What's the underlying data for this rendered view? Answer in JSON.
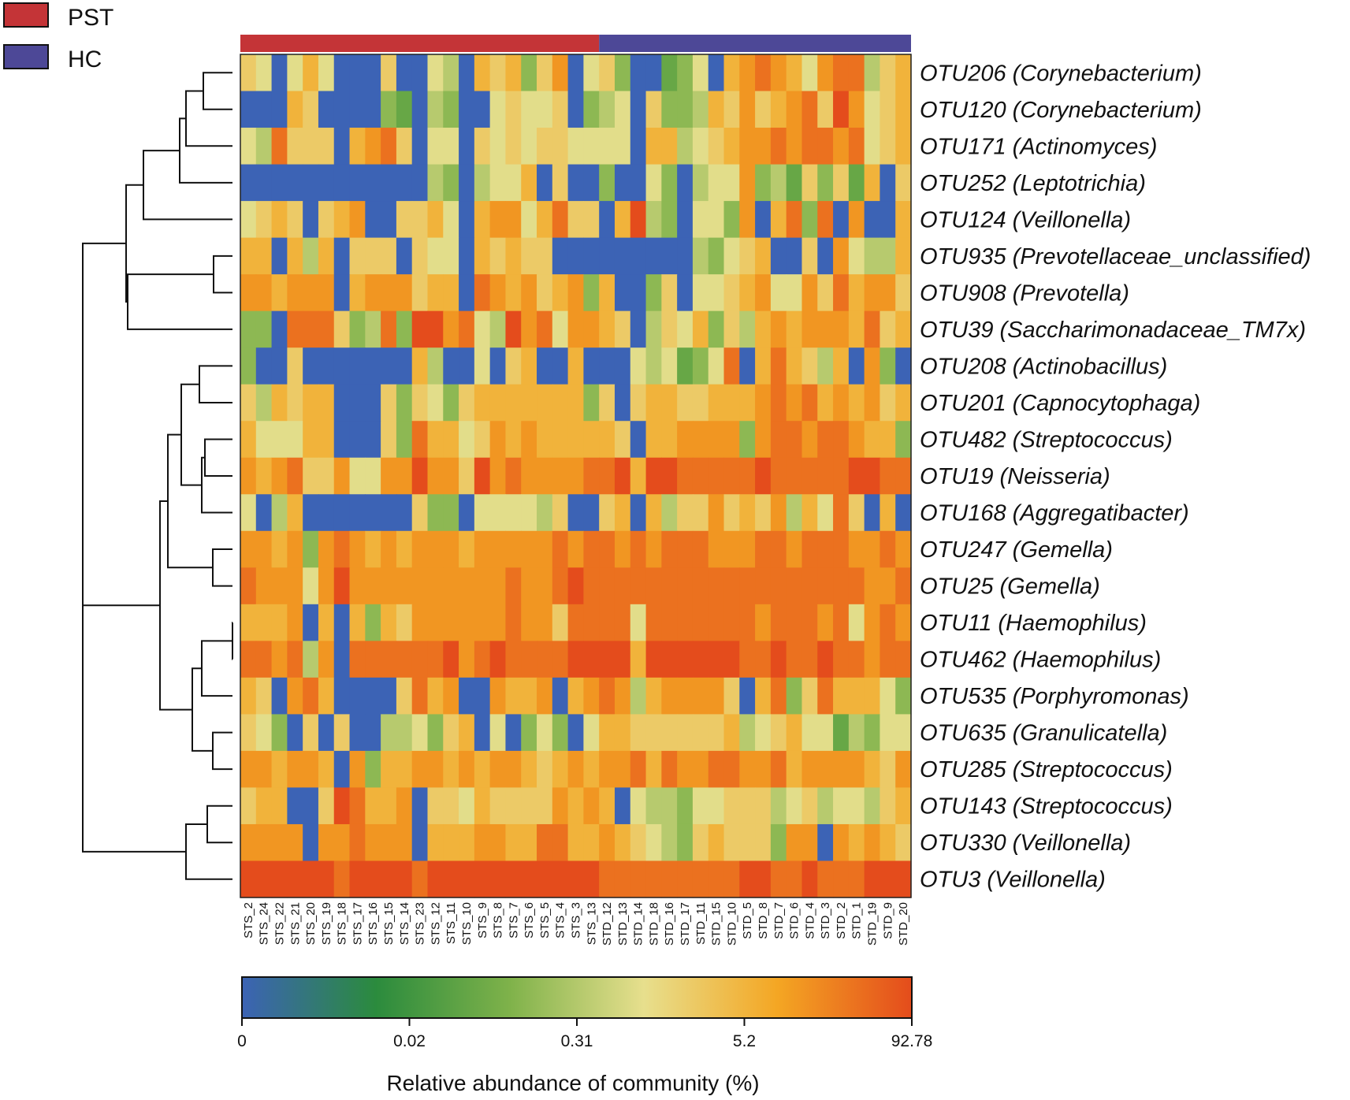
{
  "chart_data": {
    "type": "heatmap",
    "title": "",
    "legend": {
      "position": "top-left",
      "entries": [
        {
          "label": "PST",
          "color": "#c43437"
        },
        {
          "label": "HC",
          "color": "#4d4897"
        }
      ]
    },
    "groups": [
      {
        "label": "PST",
        "color": "#c43437",
        "columns": 23
      },
      {
        "label": "HC",
        "color": "#4d4897",
        "columns": 20
      }
    ],
    "columns": [
      "STS_2",
      "STS_24",
      "STS_22",
      "STS_21",
      "STS_20",
      "STS_19",
      "STS_18",
      "STS_17",
      "STS_16",
      "STS_15",
      "STS_14",
      "STS_23",
      "STS_12",
      "STS_11",
      "STS_10",
      "STS_9",
      "STS_8",
      "STS_7",
      "STS_6",
      "STS_5",
      "STS_4",
      "STS_3",
      "STS_13",
      "STD_12",
      "STD_13",
      "STD_14",
      "STD_18",
      "STD_16",
      "STD_17",
      "STD_11",
      "STD_15",
      "STD_10",
      "STD_5",
      "STD_8",
      "STD_7",
      "STD_6",
      "STD_4",
      "STD_3",
      "STD_2",
      "STD_1",
      "STD_19",
      "STD_9",
      "STD_20"
    ],
    "rows": [
      "OTU206 (Corynebacterium)",
      "OTU120 (Corynebacterium)",
      "OTU171 (Actinomyces)",
      "OTU252 (Leptotrichia)",
      "OTU124 (Veillonella)",
      "OTU935 (Prevotellaceae_unclassified)",
      "OTU908 (Prevotella)",
      "OTU39 (Saccharimonadaceae_TM7x)",
      "OTU208 (Actinobacillus)",
      "OTU201 (Capnocytophaga)",
      "OTU482 (Streptococcus)",
      "OTU19 (Neisseria)",
      "OTU168 (Aggregatibacter)",
      "OTU247 (Gemella)",
      "OTU25 (Gemella)",
      "OTU11 (Haemophilus)",
      "OTU462 (Haemophilus)",
      "OTU535 (Porphyromonas)",
      "OTU635 (Granulicatella)",
      "OTU285 (Streptococcus)",
      "OTU143 (Streptococcus)",
      "OTU330 (Veillonella)",
      "OTU3 (Veillonella)"
    ],
    "value_levels": "0 = blue (lowest) … 10 = red (highest), log-scaled relative abundance",
    "values": [
      [
        6,
        5,
        0,
        5,
        7,
        5,
        0,
        0,
        0,
        6,
        0,
        0,
        5,
        4,
        0,
        7,
        6,
        7,
        3,
        6,
        8,
        0,
        5,
        6,
        3,
        0,
        0,
        2,
        3,
        5,
        0,
        7,
        8,
        9,
        8,
        7,
        5,
        8,
        9,
        9,
        4,
        6,
        7
      ],
      [
        0,
        0,
        0,
        7,
        6,
        0,
        0,
        0,
        0,
        3,
        2,
        0,
        4,
        3,
        0,
        0,
        5,
        6,
        5,
        5,
        6,
        0,
        3,
        4,
        5,
        0,
        6,
        3,
        3,
        4,
        7,
        6,
        8,
        6,
        7,
        8,
        9,
        6,
        10,
        8,
        5,
        6,
        7
      ],
      [
        5,
        4,
        9,
        6,
        6,
        6,
        0,
        7,
        8,
        9,
        6,
        0,
        5,
        5,
        0,
        6,
        5,
        6,
        5,
        6,
        6,
        5,
        5,
        5,
        5,
        0,
        7,
        7,
        4,
        5,
        6,
        7,
        8,
        8,
        9,
        8,
        9,
        9,
        8,
        9,
        5,
        6,
        7
      ],
      [
        0,
        0,
        0,
        0,
        0,
        0,
        0,
        0,
        0,
        0,
        0,
        0,
        4,
        3,
        0,
        4,
        5,
        5,
        7,
        0,
        6,
        0,
        0,
        3,
        0,
        0,
        5,
        3,
        0,
        4,
        5,
        5,
        8,
        3,
        4,
        2,
        6,
        3,
        6,
        2,
        7,
        0,
        6
      ],
      [
        5,
        6,
        7,
        6,
        0,
        6,
        7,
        8,
        0,
        0,
        6,
        6,
        7,
        5,
        0,
        7,
        8,
        8,
        5,
        7,
        9,
        6,
        6,
        0,
        7,
        10,
        4,
        3,
        0,
        5,
        5,
        3,
        8,
        0,
        7,
        9,
        3,
        9,
        0,
        8,
        0,
        0,
        7
      ],
      [
        7,
        7,
        0,
        7,
        4,
        7,
        0,
        6,
        6,
        6,
        0,
        6,
        5,
        5,
        0,
        7,
        6,
        7,
        6,
        6,
        0,
        0,
        0,
        0,
        0,
        0,
        0,
        0,
        0,
        4,
        3,
        5,
        6,
        7,
        0,
        0,
        6,
        0,
        8,
        5,
        4,
        4,
        7
      ],
      [
        8,
        8,
        7,
        8,
        8,
        8,
        0,
        7,
        8,
        8,
        8,
        6,
        7,
        7,
        0,
        9,
        8,
        7,
        8,
        6,
        7,
        8,
        3,
        7,
        0,
        0,
        3,
        6,
        0,
        5,
        5,
        6,
        7,
        8,
        5,
        5,
        8,
        6,
        9,
        7,
        8,
        8,
        6
      ],
      [
        3,
        3,
        0,
        9,
        9,
        9,
        6,
        3,
        4,
        9,
        3,
        10,
        10,
        8,
        9,
        5,
        4,
        10,
        8,
        9,
        5,
        8,
        8,
        7,
        6,
        0,
        4,
        6,
        5,
        7,
        3,
        6,
        4,
        7,
        8,
        7,
        8,
        8,
        8,
        7,
        9,
        6,
        7
      ],
      [
        3,
        0,
        0,
        6,
        0,
        0,
        0,
        0,
        0,
        0,
        0,
        7,
        4,
        0,
        0,
        5,
        0,
        6,
        7,
        0,
        0,
        7,
        0,
        0,
        0,
        5,
        4,
        5,
        2,
        3,
        5,
        9,
        0,
        7,
        9,
        7,
        6,
        4,
        7,
        0,
        8,
        3,
        0
      ],
      [
        6,
        4,
        7,
        6,
        7,
        7,
        0,
        0,
        0,
        6,
        3,
        6,
        5,
        3,
        6,
        7,
        7,
        7,
        7,
        7,
        7,
        7,
        3,
        6,
        0,
        6,
        7,
        7,
        6,
        6,
        7,
        7,
        7,
        8,
        9,
        8,
        9,
        7,
        8,
        7,
        8,
        6,
        7
      ],
      [
        7,
        5,
        5,
        5,
        7,
        7,
        0,
        0,
        0,
        6,
        3,
        9,
        7,
        7,
        5,
        6,
        8,
        7,
        8,
        7,
        7,
        7,
        7,
        7,
        6,
        0,
        7,
        7,
        8,
        8,
        8,
        8,
        3,
        8,
        9,
        9,
        8,
        9,
        9,
        8,
        7,
        7,
        3
      ],
      [
        8,
        7,
        8,
        9,
        6,
        6,
        8,
        5,
        5,
        8,
        8,
        10,
        8,
        8,
        6,
        10,
        8,
        9,
        8,
        8,
        8,
        8,
        9,
        9,
        10,
        7,
        10,
        10,
        9,
        9,
        9,
        9,
        9,
        10,
        9,
        9,
        9,
        9,
        9,
        10,
        10,
        9,
        9
      ],
      [
        5,
        0,
        4,
        7,
        0,
        0,
        0,
        0,
        0,
        0,
        0,
        6,
        3,
        3,
        0,
        5,
        5,
        5,
        5,
        4,
        6,
        0,
        0,
        6,
        7,
        0,
        7,
        4,
        6,
        6,
        8,
        6,
        7,
        6,
        8,
        4,
        7,
        5,
        9,
        6,
        0,
        7,
        0
      ],
      [
        8,
        8,
        7,
        8,
        3,
        8,
        9,
        8,
        7,
        8,
        7,
        8,
        8,
        8,
        7,
        8,
        8,
        8,
        8,
        8,
        9,
        8,
        9,
        9,
        8,
        9,
        8,
        9,
        9,
        9,
        8,
        8,
        8,
        9,
        9,
        8,
        9,
        9,
        9,
        8,
        8,
        9,
        8
      ],
      [
        9,
        8,
        8,
        8,
        5,
        8,
        10,
        8,
        8,
        8,
        8,
        8,
        8,
        8,
        8,
        8,
        8,
        9,
        8,
        8,
        9,
        10,
        9,
        9,
        9,
        9,
        9,
        9,
        9,
        9,
        9,
        9,
        9,
        9,
        9,
        9,
        9,
        9,
        9,
        9,
        8,
        8,
        9
      ],
      [
        7,
        7,
        7,
        8,
        0,
        7,
        0,
        7,
        3,
        7,
        6,
        8,
        8,
        8,
        8,
        8,
        8,
        9,
        8,
        8,
        6,
        9,
        9,
        9,
        9,
        5,
        9,
        9,
        9,
        9,
        9,
        9,
        9,
        8,
        9,
        9,
        9,
        8,
        9,
        5,
        8,
        9,
        8
      ],
      [
        9,
        9,
        8,
        9,
        4,
        8,
        0,
        9,
        9,
        9,
        9,
        9,
        9,
        10,
        8,
        9,
        10,
        9,
        9,
        9,
        9,
        10,
        10,
        10,
        10,
        7,
        10,
        10,
        10,
        10,
        10,
        10,
        9,
        9,
        10,
        9,
        9,
        10,
        9,
        9,
        8,
        9,
        9
      ],
      [
        7,
        6,
        0,
        8,
        9,
        7,
        0,
        0,
        0,
        0,
        6,
        9,
        7,
        8,
        0,
        0,
        8,
        7,
        7,
        8,
        0,
        7,
        8,
        9,
        8,
        4,
        7,
        8,
        8,
        8,
        8,
        6,
        0,
        7,
        9,
        3,
        6,
        9,
        7,
        7,
        7,
        5,
        3
      ],
      [
        6,
        5,
        3,
        0,
        6,
        0,
        6,
        0,
        0,
        4,
        4,
        5,
        3,
        6,
        7,
        0,
        5,
        0,
        3,
        5,
        3,
        0,
        5,
        7,
        7,
        6,
        6,
        6,
        6,
        6,
        6,
        7,
        4,
        5,
        6,
        7,
        5,
        5,
        2,
        4,
        3,
        5,
        5
      ],
      [
        8,
        8,
        7,
        8,
        8,
        7,
        0,
        8,
        3,
        7,
        7,
        8,
        8,
        7,
        8,
        7,
        8,
        8,
        7,
        6,
        7,
        8,
        7,
        8,
        8,
        9,
        7,
        9,
        8,
        8,
        9,
        9,
        8,
        8,
        9,
        7,
        8,
        8,
        8,
        8,
        7,
        6,
        8
      ],
      [
        6,
        7,
        7,
        0,
        0,
        6,
        10,
        9,
        7,
        7,
        8,
        0,
        6,
        6,
        5,
        7,
        6,
        6,
        6,
        6,
        8,
        7,
        8,
        7,
        0,
        5,
        4,
        4,
        3,
        5,
        5,
        6,
        6,
        6,
        4,
        5,
        6,
        4,
        5,
        5,
        4,
        6,
        7
      ],
      [
        8,
        8,
        8,
        8,
        0,
        8,
        8,
        9,
        8,
        8,
        8,
        0,
        7,
        7,
        7,
        8,
        8,
        7,
        7,
        9,
        9,
        7,
        7,
        8,
        7,
        6,
        5,
        4,
        3,
        6,
        7,
        6,
        6,
        6,
        3,
        8,
        8,
        0,
        8,
        7,
        8,
        7,
        6
      ],
      [
        10,
        10,
        10,
        10,
        10,
        10,
        9,
        10,
        10,
        10,
        10,
        9,
        10,
        10,
        10,
        10,
        10,
        10,
        10,
        10,
        10,
        10,
        10,
        9,
        9,
        9,
        9,
        9,
        9,
        9,
        9,
        9,
        10,
        10,
        9,
        9,
        10,
        9,
        9,
        9,
        10,
        10,
        10
      ]
    ],
    "colorbar": {
      "title": "Relative abundance of community (%)",
      "ticks": [
        "0",
        "0.02",
        "0.31",
        "5.2",
        "92.78"
      ],
      "gradient": [
        "#3c63b5",
        "#2b8b3d",
        "#7fb24a",
        "#e7df8d",
        "#f4a623",
        "#e44c1c"
      ]
    },
    "dendrogram": "row clustering tree (left)"
  }
}
